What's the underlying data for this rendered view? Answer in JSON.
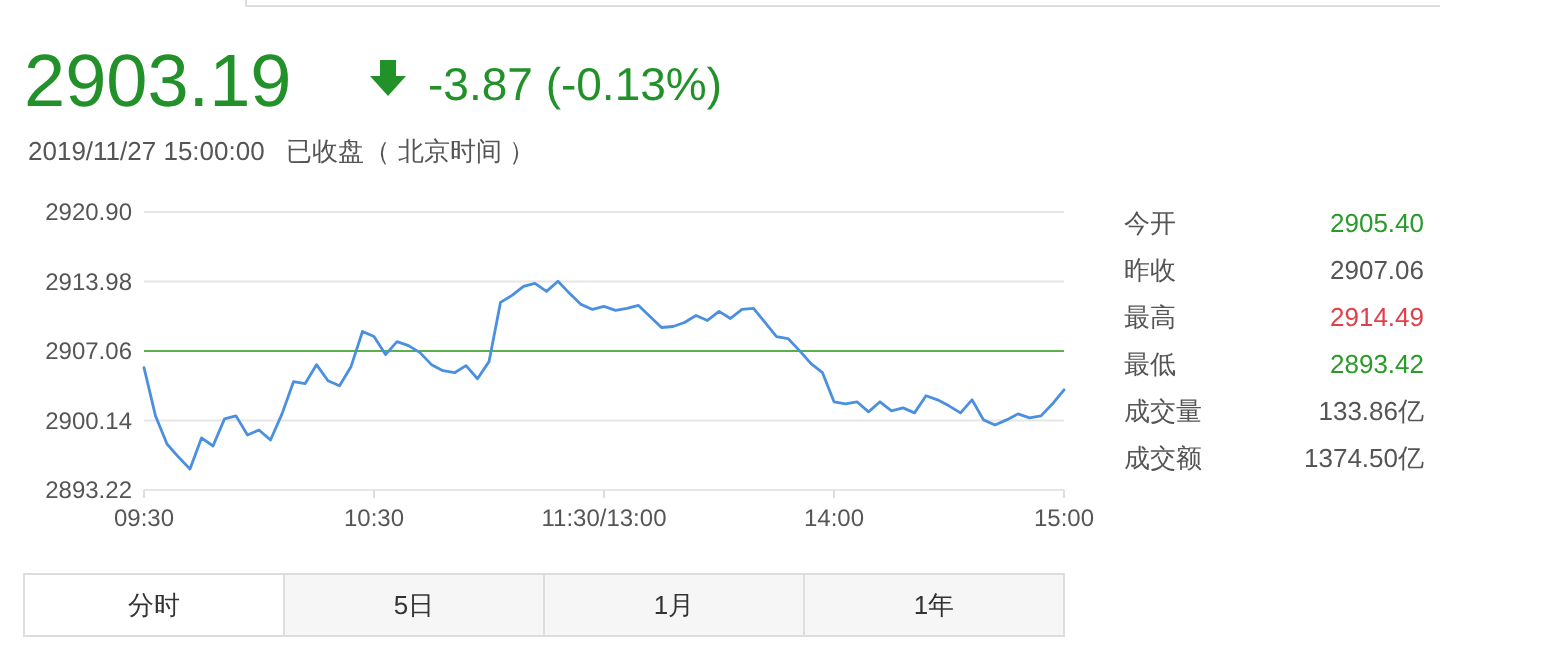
{
  "chart_data": {
    "type": "line",
    "title": "2903.19",
    "subtitle": "-3.87 (-0.13%)",
    "annotations": [
      "2019/11/27 15:00:00   已收盘（ 北京时间 ）",
      "今开",
      "2905.40",
      "昨收",
      "2907.06",
      "最高",
      "2914.49",
      "最低",
      "2893.42",
      "成交量",
      "133.86亿",
      "成交额",
      "1374.50亿",
      "分时",
      "5日",
      "1月",
      "1年"
    ],
    "categories": [
      "09:30",
      null,
      null,
      null,
      null,
      null,
      null,
      null,
      null,
      null,
      null,
      null,
      null,
      null,
      null,
      null,
      null,
      null,
      null,
      null,
      "10:30",
      null,
      null,
      null,
      null,
      null,
      null,
      null,
      null,
      null,
      null,
      null,
      null,
      null,
      null,
      null,
      null,
      null,
      null,
      null,
      "11:30/13:00",
      null,
      null,
      null,
      null,
      null,
      null,
      null,
      null,
      null,
      null,
      null,
      null,
      null,
      null,
      null,
      null,
      null,
      null,
      null,
      "14:00",
      null,
      null,
      null,
      null,
      null,
      null,
      null,
      null,
      null,
      null,
      null,
      null,
      null,
      null,
      null,
      null,
      null,
      null,
      null,
      "15:00"
    ],
    "series": [
      {
        "color": "#4a8fe0",
        "values": [
          2905.4,
          2900.6,
          2897.8,
          2896.5,
          2895.3,
          2898.4,
          2897.6,
          2900.3,
          2900.6,
          2898.7,
          2899.2,
          2898.2,
          2900.8,
          2904.0,
          2903.8,
          2905.7,
          2904.1,
          2903.6,
          2905.5,
          2909.0,
          2908.5,
          2906.7,
          2908.0,
          2907.6,
          2906.9,
          2905.7,
          2905.1,
          2904.9,
          2905.6,
          2904.3,
          2906.0,
          2911.9,
          2912.6,
          2913.5,
          2913.8,
          2913.0,
          2914.0,
          2912.8,
          2911.7,
          2911.2,
          2911.5,
          2911.1,
          2911.3,
          2911.6,
          2910.5,
          2909.4,
          2909.5,
          2909.9,
          2910.6,
          2910.1,
          2911.0,
          2910.3,
          2911.2,
          2911.3,
          2909.9,
          2908.5,
          2908.3,
          2907.1,
          2905.8,
          2904.9,
          2902.0,
          2901.8,
          2902.0,
          2901.0,
          2902.0,
          2901.1,
          2901.4,
          2900.9,
          2902.6,
          2902.2,
          2901.6,
          2900.9,
          2902.2,
          2900.2,
          2899.7,
          2900.2,
          2900.8,
          2900.4,
          2900.6,
          2901.8,
          2903.2
        ]
      }
    ],
    "ylim": [
      2893.22,
      2920.9
    ],
    "yticks": [
      2893.22,
      2900.14,
      2907.06,
      2913.98,
      {
        "value": 2920.9,
        "label": "2920.90"
      }
    ],
    "grid": "y",
    "ref_lines": [
      {
        "axis": "y",
        "value": 2907.06,
        "color": "#5cb04a"
      }
    ],
    "marker": "none",
    "line_style": "solid"
  }
}
